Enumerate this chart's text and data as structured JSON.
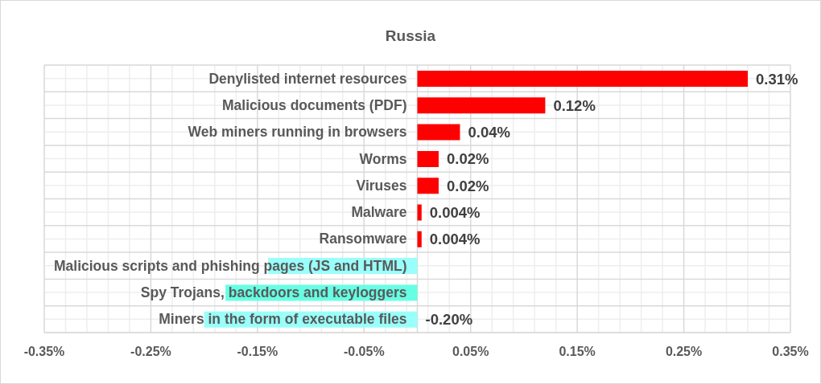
{
  "chart_data": {
    "type": "bar",
    "title": "Russia",
    "orientation": "horizontal",
    "categories": [
      "Denylisted internet resources",
      "Malicious documents (PDF)",
      "Web miners running in browsers",
      "Worms",
      "Viruses",
      "Malware",
      "Ransomware",
      "Malicious scripts and phishing pages (JS and HTML)",
      "Spy Trojans, backdoors and keyloggers",
      "Miners in the form of executable files"
    ],
    "values": [
      0.31,
      0.12,
      0.04,
      0.02,
      0.02,
      0.004,
      0.004,
      -0.14,
      -0.18,
      -0.2
    ],
    "colors": [
      "#ff0000",
      "#ff0000",
      "#ff0000",
      "#ff0000",
      "#ff0000",
      "#ff0000",
      "#ff0000",
      "#99fffa",
      "#66ffe3",
      "#99fffa"
    ],
    "value_labels": [
      "0.31%",
      "0.12%",
      "0.04%",
      "0.02%",
      "0.02%",
      "0.004%",
      "0.004%",
      null,
      null,
      "-0.20%"
    ],
    "xlim": [
      -0.35,
      0.35
    ],
    "xticks": [
      {
        "value": -0.35,
        "label": "-0.35%"
      },
      {
        "value": -0.33,
        "label": null
      },
      {
        "value": -0.31,
        "label": null
      },
      {
        "value": -0.29,
        "label": null
      },
      {
        "value": -0.27,
        "label": null
      },
      {
        "value": -0.25,
        "label": "-0.25%"
      },
      {
        "value": -0.23,
        "label": null
      },
      {
        "value": -0.21,
        "label": null
      },
      {
        "value": -0.19,
        "label": null
      },
      {
        "value": -0.17,
        "label": null
      },
      {
        "value": -0.15,
        "label": "-0.15%"
      },
      {
        "value": -0.13,
        "label": null
      },
      {
        "value": -0.11,
        "label": null
      },
      {
        "value": -0.09,
        "label": null
      },
      {
        "value": -0.07,
        "label": null
      },
      {
        "value": -0.05,
        "label": "-0.05%"
      },
      {
        "value": -0.03,
        "label": null
      },
      {
        "value": -0.01,
        "label": null
      },
      {
        "value": 0.01,
        "label": null
      },
      {
        "value": 0.03,
        "label": null
      },
      {
        "value": 0.05,
        "label": "0.05%"
      },
      {
        "value": 0.07,
        "label": null
      },
      {
        "value": 0.09,
        "label": null
      },
      {
        "value": 0.11,
        "label": null
      },
      {
        "value": 0.13,
        "label": null
      },
      {
        "value": 0.15,
        "label": "0.15%"
      },
      {
        "value": 0.17,
        "label": null
      },
      {
        "value": 0.19,
        "label": null
      },
      {
        "value": 0.21,
        "label": null
      },
      {
        "value": 0.23,
        "label": null
      },
      {
        "value": 0.25,
        "label": "0.25%"
      },
      {
        "value": 0.27,
        "label": null
      },
      {
        "value": 0.29,
        "label": null
      },
      {
        "value": 0.31,
        "label": null
      },
      {
        "value": 0.33,
        "label": null
      },
      {
        "value": 0.35,
        "label": "0.35%"
      }
    ],
    "grid": true
  }
}
